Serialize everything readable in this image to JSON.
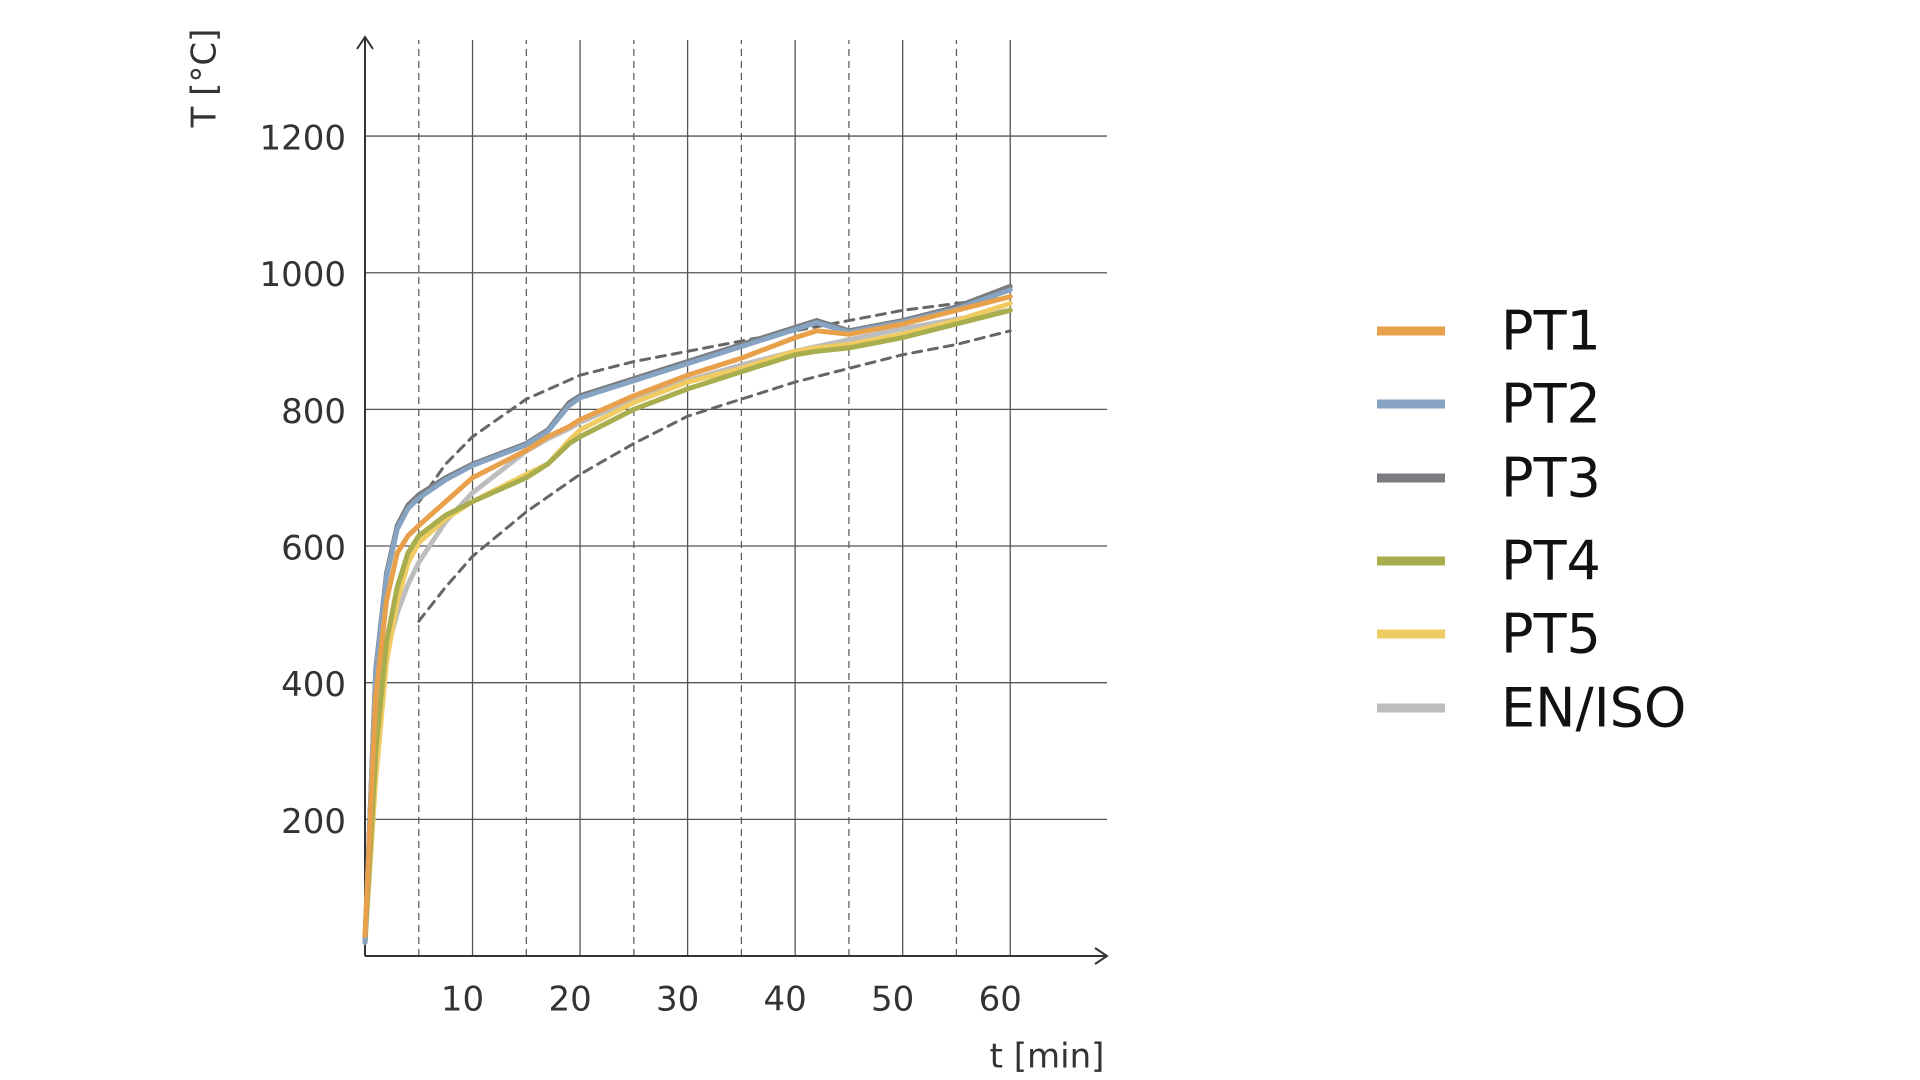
{
  "chart_data": {
    "type": "line",
    "xlabel": "t [min]",
    "ylabel": "T [°C]",
    "xlim": [
      0,
      69
    ],
    "ylim": [
      0,
      1345
    ],
    "xticks": [
      10,
      20,
      30,
      40,
      50,
      60
    ],
    "xminorticks": [
      5,
      15,
      25,
      35,
      45,
      55
    ],
    "yticks": [
      200,
      400,
      600,
      800,
      1000,
      1200
    ],
    "grid": true,
    "legend": "right",
    "x": [
      0,
      1,
      2,
      3,
      4,
      5,
      7.5,
      10,
      15,
      17,
      19,
      20,
      25,
      30,
      35,
      40,
      42,
      45,
      50,
      55,
      60
    ],
    "series": [
      {
        "name": "PT1",
        "color": "#e8a04a",
        "values": [
          30,
          380,
          520,
          590,
          615,
          630,
          665,
          700,
          740,
          760,
          775,
          785,
          820,
          850,
          875,
          905,
          915,
          910,
          925,
          945,
          965
        ]
      },
      {
        "name": "PT2",
        "color": "#86a3c2",
        "values": [
          20,
          415,
          555,
          625,
          655,
          670,
          697,
          718,
          748,
          768,
          806,
          817,
          842,
          867,
          892,
          917,
          927,
          913,
          928,
          947,
          975
        ]
      },
      {
        "name": "PT3",
        "color": "#7a7c80",
        "values": [
          20,
          420,
          560,
          630,
          660,
          675,
          700,
          720,
          750,
          770,
          810,
          820,
          845,
          870,
          895,
          920,
          930,
          915,
          930,
          950,
          980
        ]
      },
      {
        "name": "PT4",
        "color": "#a8ad4e",
        "values": [
          20,
          300,
          460,
          540,
          590,
          615,
          645,
          665,
          700,
          720,
          750,
          760,
          800,
          830,
          855,
          880,
          885,
          890,
          905,
          925,
          945
        ]
      },
      {
        "name": "PT5",
        "color": "#f0cb62",
        "values": [
          20,
          260,
          430,
          520,
          575,
          605,
          640,
          665,
          705,
          720,
          755,
          770,
          810,
          840,
          860,
          885,
          890,
          895,
          910,
          930,
          955
        ]
      },
      {
        "name": "EN/ISO",
        "color": "#bdbdbd",
        "values": [
          20,
          349,
          445,
          502,
          544,
          576,
          636,
          678,
          739,
          757,
          772,
          781,
          815,
          842,
          865,
          885,
          892,
          902,
          918,
          932,
          945
        ]
      }
    ],
    "dashed_series": [
      {
        "color": "#666666",
        "x": [
          5,
          7.5,
          10,
          15,
          20,
          25,
          30,
          35,
          40,
          45,
          50,
          55,
          60
        ],
        "values": [
          664,
          720,
          760,
          815,
          850,
          870,
          885,
          900,
          915,
          930,
          945,
          955,
          965
        ]
      },
      {
        "color": "#666666",
        "x": [
          5,
          7.5,
          10,
          15,
          20,
          25,
          30,
          35,
          40,
          45,
          50,
          55,
          60
        ],
        "values": [
          490,
          540,
          585,
          650,
          705,
          750,
          790,
          815,
          840,
          860,
          880,
          895,
          915
        ]
      }
    ]
  }
}
